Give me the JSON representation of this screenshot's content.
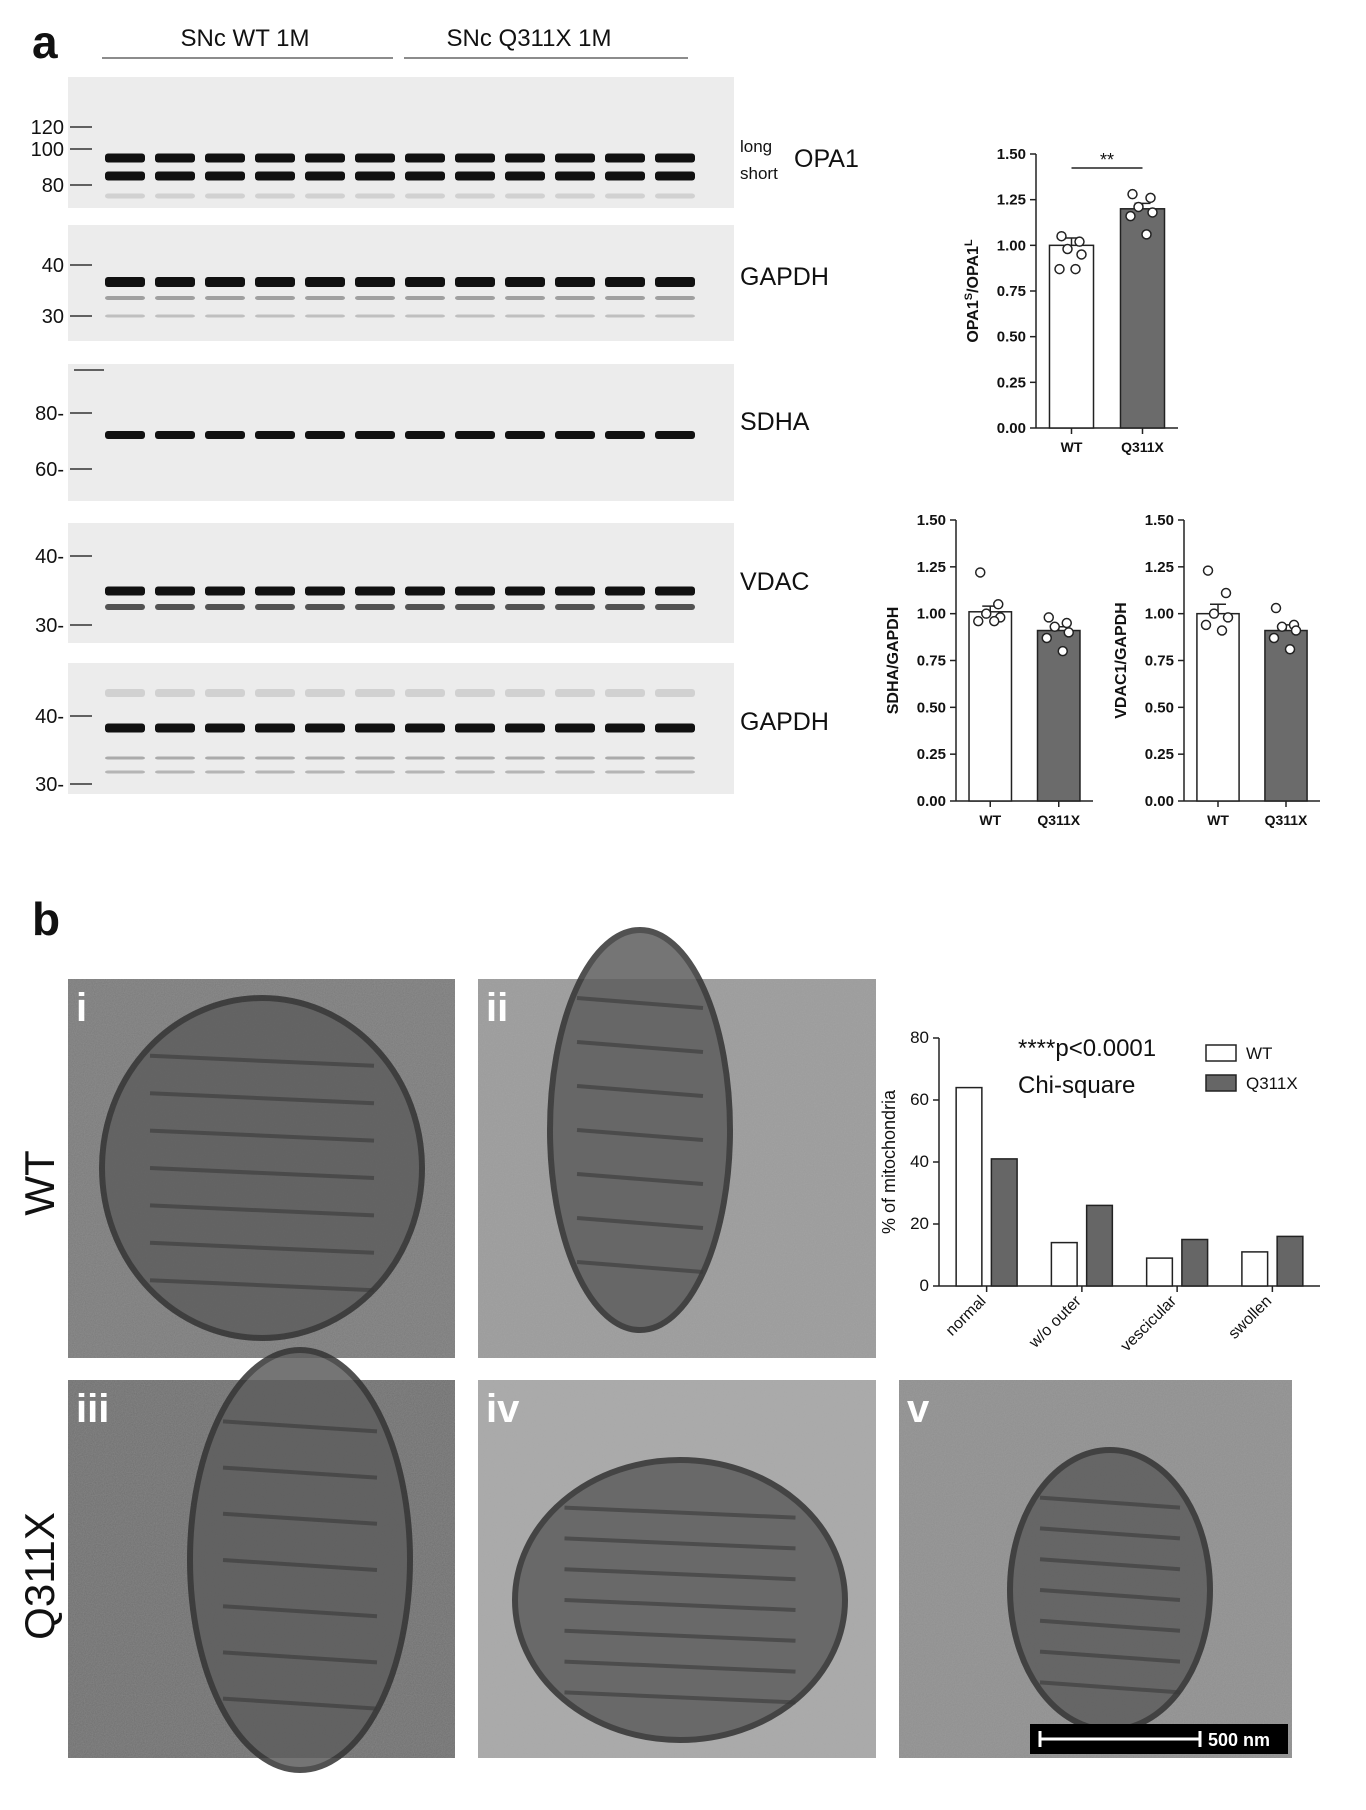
{
  "figure": {
    "panel_a": "a",
    "panel_b": "b",
    "groups": [
      "SNc WT 1M",
      "SNc Q311X 1M"
    ],
    "blots": [
      {
        "markers": [
          "120",
          "100",
          "80"
        ],
        "labels": [
          "long",
          "short",
          "OPA1"
        ]
      },
      {
        "markers": [
          "40",
          "30"
        ],
        "labels": [
          "GAPDH"
        ]
      },
      {
        "markers": [
          "80-",
          "60-"
        ],
        "labels": [
          "SDHA"
        ]
      },
      {
        "markers": [
          "40-",
          "30-"
        ],
        "labels": [
          "VDAC"
        ]
      },
      {
        "markers": [
          "40-",
          "30-"
        ],
        "labels": [
          "GAPDH"
        ]
      }
    ],
    "em_labels": [
      "i",
      "ii",
      "iii",
      "iv",
      "v"
    ],
    "em_rows": [
      "WT",
      "Q311X"
    ],
    "scale_bar": "500 nm"
  },
  "chart_data": [
    {
      "type": "bar",
      "y_label": [
        "OPA1",
        "S",
        "/OPA1",
        "L"
      ],
      "categories": [
        "WT",
        "Q311X"
      ],
      "values": [
        1.0,
        1.2
      ],
      "errors": [
        0.04,
        0.03
      ],
      "points": [
        [
          1.05,
          1.02,
          0.98,
          0.95,
          0.87,
          0.87
        ],
        [
          1.28,
          1.26,
          1.21,
          1.18,
          1.16,
          1.06
        ]
      ],
      "colors": [
        "#ffffff",
        "#6b6b6b"
      ],
      "annotation": "**",
      "ylim": [
        0,
        1.5
      ],
      "yticks": [
        {
          "value": 0,
          "label": "0.00"
        },
        {
          "value": 0.25,
          "label": "0.25"
        },
        {
          "value": 0.5,
          "label": "0.50"
        },
        {
          "value": 0.75,
          "label": "0.75"
        },
        {
          "value": 1,
          "label": "1.00"
        },
        {
          "value": 1.25,
          "label": "1.25"
        },
        {
          "value": 1.5,
          "label": "1.50"
        }
      ]
    },
    {
      "type": "bar",
      "y_label": "SDHA/GAPDH",
      "categories": [
        "WT",
        "Q311X"
      ],
      "values": [
        1.01,
        0.91
      ],
      "errors": [
        0.03,
        0.02
      ],
      "points": [
        [
          1.22,
          1.05,
          1.0,
          0.98,
          0.96,
          0.96
        ],
        [
          0.98,
          0.95,
          0.93,
          0.9,
          0.87,
          0.8
        ]
      ],
      "colors": [
        "#ffffff",
        "#6b6b6b"
      ],
      "ylim": [
        0,
        1.5
      ],
      "yticks": [
        {
          "value": 0,
          "label": "0.00"
        },
        {
          "value": 0.25,
          "label": "0.25"
        },
        {
          "value": 0.5,
          "label": "0.50"
        },
        {
          "value": 0.75,
          "label": "0.75"
        },
        {
          "value": 1,
          "label": "1.00"
        },
        {
          "value": 1.25,
          "label": "1.25"
        },
        {
          "value": 1.5,
          "label": "1.50"
        }
      ]
    },
    {
      "type": "bar",
      "y_label": "VDAC1/GAPDH",
      "categories": [
        "WT",
        "Q311X"
      ],
      "values": [
        1.0,
        0.91
      ],
      "errors": [
        0.05,
        0.03
      ],
      "points": [
        [
          1.23,
          1.11,
          1.0,
          0.98,
          0.94,
          0.91
        ],
        [
          1.03,
          0.94,
          0.93,
          0.91,
          0.87,
          0.81
        ]
      ],
      "colors": [
        "#ffffff",
        "#6b6b6b"
      ],
      "ylim": [
        0,
        1.5
      ],
      "yticks": [
        {
          "value": 0,
          "label": "0.00"
        },
        {
          "value": 0.25,
          "label": "0.25"
        },
        {
          "value": 0.5,
          "label": "0.50"
        },
        {
          "value": 0.75,
          "label": "0.75"
        },
        {
          "value": 1,
          "label": "1.00"
        },
        {
          "value": 1.25,
          "label": "1.25"
        },
        {
          "value": 1.5,
          "label": "1.50"
        }
      ]
    },
    {
      "type": "grouped_bar",
      "y_label": "% of mitochondria",
      "categories": [
        "normal",
        "w/o outer",
        "vescicular",
        "swollen"
      ],
      "series": [
        {
          "name": "WT",
          "color": "#ffffff",
          "values": [
            64,
            14,
            9,
            11
          ]
        },
        {
          "name": "Q311X",
          "color": "#666666",
          "values": [
            41,
            26,
            15,
            16
          ]
        }
      ],
      "annotations": [
        "****p<0.0001",
        "Chi-square"
      ],
      "ylim": [
        0,
        80
      ],
      "yticks": [
        0,
        20,
        40,
        60,
        80
      ]
    }
  ]
}
